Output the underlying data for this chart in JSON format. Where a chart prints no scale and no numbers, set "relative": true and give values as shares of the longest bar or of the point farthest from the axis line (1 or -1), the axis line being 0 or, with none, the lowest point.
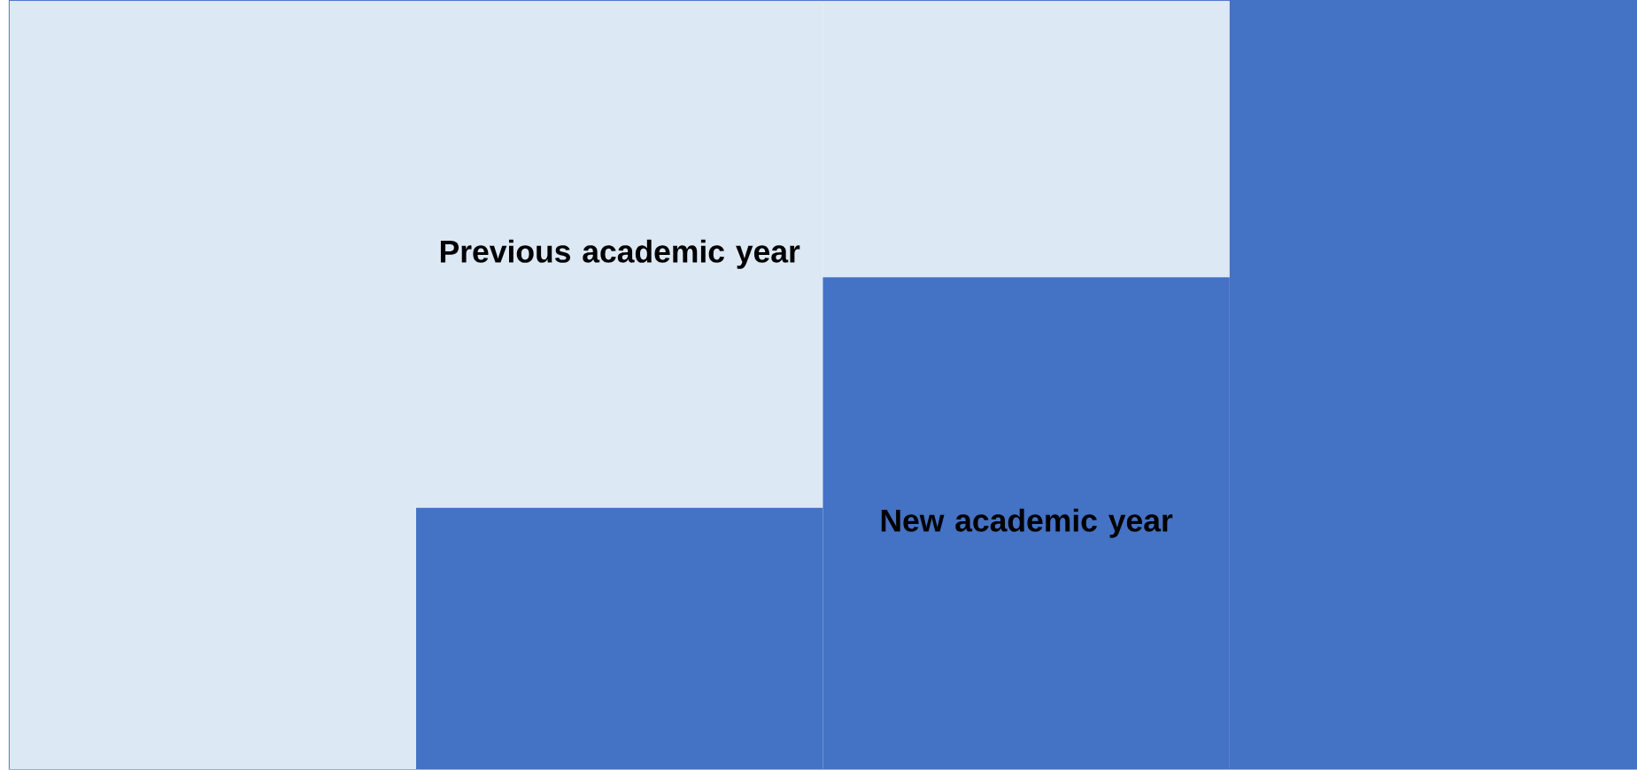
{
  "chart_data": {
    "type": "bar",
    "stacked": true,
    "relative": true,
    "categories": [
      null,
      null,
      null,
      null
    ],
    "series": [
      {
        "name": "New academic year",
        "color": "#4472c4",
        "values": [
          0,
          0.34,
          0.64,
          1
        ]
      },
      {
        "name": "Previous academic year",
        "color": "#dde8f5",
        "values": [
          1,
          0.66,
          0.36,
          0
        ]
      }
    ]
  }
}
